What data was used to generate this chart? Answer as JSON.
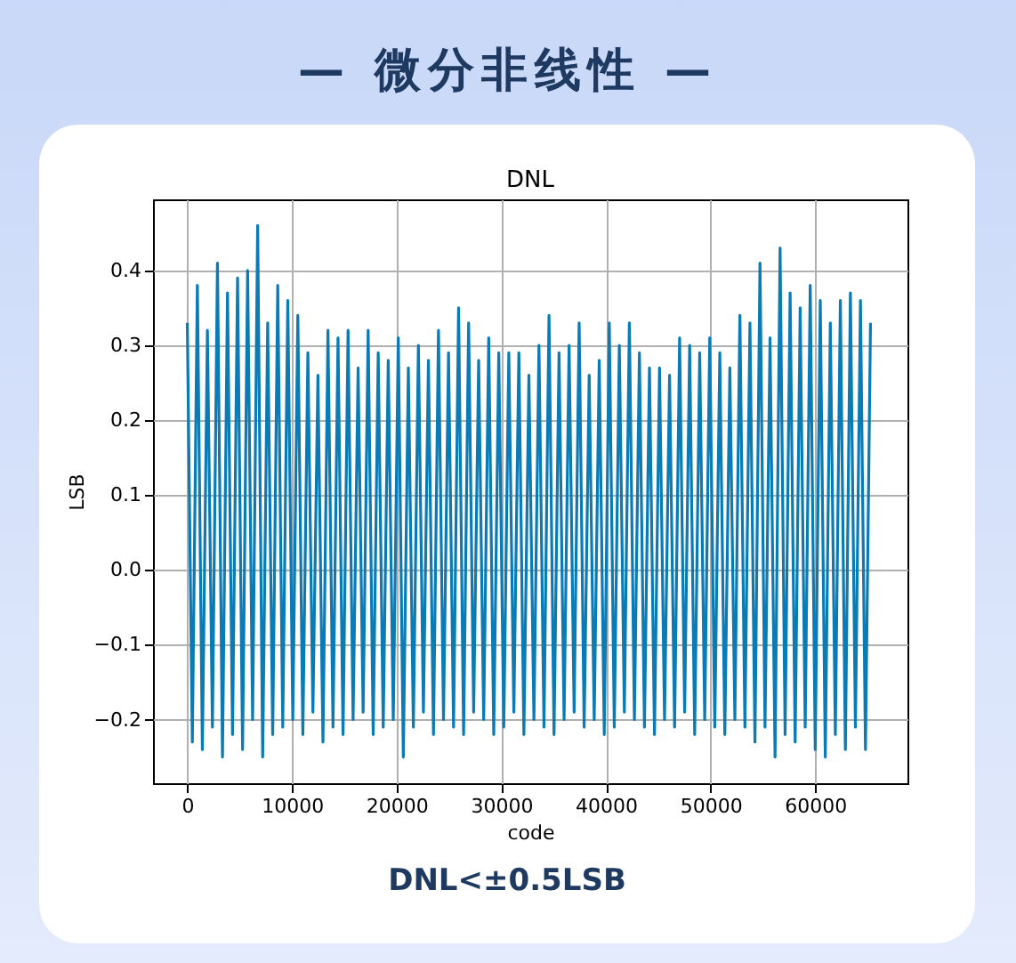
{
  "chart_data": {
    "type": "line",
    "title": "— 微分非线性 —",
    "subtitle": "DNL",
    "xlabel": "code",
    "ylabel": "LSB",
    "annotations": [
      "DNL<±0.5LSB"
    ],
    "x": [
      0,
      480,
      960,
      1440,
      1920,
      2400,
      2880,
      3360,
      3840,
      4320,
      4800,
      5280,
      5760,
      6240,
      6720,
      7200,
      7680,
      8160,
      8640,
      9120,
      9600,
      10080,
      10560,
      11040,
      11520,
      12000,
      12480,
      12960,
      13440,
      13920,
      14400,
      14880,
      15360,
      15840,
      16320,
      16800,
      17280,
      17760,
      18240,
      18720,
      19200,
      19680,
      20160,
      20640,
      21120,
      21600,
      22080,
      22560,
      23040,
      23520,
      24000,
      24480,
      24960,
      25440,
      25920,
      26400,
      26880,
      27360,
      27840,
      28320,
      28800,
      29280,
      29760,
      30240,
      30720,
      31200,
      31680,
      32160,
      32640,
      33120,
      33600,
      34080,
      34560,
      35040,
      35520,
      36000,
      36480,
      36960,
      37440,
      37920,
      38400,
      38880,
      39360,
      39840,
      40320,
      40800,
      41280,
      41760,
      42240,
      42720,
      43200,
      43680,
      44160,
      44640,
      45120,
      45600,
      46080,
      46560,
      47040,
      47520,
      48000,
      48480,
      48960,
      49440,
      49920,
      50400,
      50880,
      51360,
      51840,
      52320,
      52800,
      53280,
      53760,
      54240,
      54720,
      55200,
      55680,
      56160,
      56640,
      57120,
      57600,
      58080,
      58560,
      59040,
      59520,
      60000,
      60480,
      60960,
      61440,
      61920,
      62400,
      62880,
      63360,
      63840,
      64320,
      64800,
      65280
    ],
    "series": [
      {
        "color": "#0a7bb5",
        "values": [
          0.33,
          -0.23,
          0.38,
          -0.24,
          0.32,
          -0.21,
          0.41,
          -0.25,
          0.37,
          -0.22,
          0.39,
          -0.24,
          0.4,
          -0.2,
          0.46,
          -0.25,
          0.33,
          -0.22,
          0.38,
          -0.21,
          0.36,
          -0.2,
          0.34,
          -0.22,
          0.29,
          -0.19,
          0.26,
          -0.23,
          0.32,
          -0.21,
          0.31,
          -0.22,
          0.32,
          -0.2,
          0.27,
          -0.19,
          0.32,
          -0.22,
          0.29,
          -0.21,
          0.28,
          -0.2,
          0.31,
          -0.25,
          0.27,
          -0.21,
          0.3,
          -0.19,
          0.28,
          -0.22,
          0.32,
          -0.2,
          0.29,
          -0.21,
          0.35,
          -0.22,
          0.33,
          -0.19,
          0.28,
          -0.2,
          0.31,
          -0.22,
          0.29,
          -0.21,
          0.29,
          -0.19,
          0.29,
          -0.22,
          0.26,
          -0.2,
          0.3,
          -0.21,
          0.34,
          -0.22,
          0.29,
          -0.2,
          0.3,
          -0.19,
          0.33,
          -0.21,
          0.26,
          -0.2,
          0.28,
          -0.22,
          0.33,
          -0.21,
          0.3,
          -0.19,
          0.33,
          -0.2,
          0.29,
          -0.21,
          0.27,
          -0.22,
          0.27,
          -0.2,
          0.26,
          -0.21,
          0.31,
          -0.19,
          0.3,
          -0.22,
          0.29,
          -0.2,
          0.31,
          -0.21,
          0.29,
          -0.22,
          0.27,
          -0.2,
          0.34,
          -0.21,
          0.33,
          -0.23,
          0.41,
          -0.21,
          0.31,
          -0.25,
          0.43,
          -0.22,
          0.37,
          -0.23,
          0.35,
          -0.21,
          0.38,
          -0.24,
          0.36,
          -0.25,
          0.33,
          -0.22,
          0.36,
          -0.24,
          0.37,
          -0.21,
          0.36,
          -0.24,
          0.33
        ]
      }
    ],
    "xlim": [
      -3277,
      68812
    ],
    "ylim": [
      -0.285,
      0.495
    ],
    "xticks": [
      0,
      10000,
      20000,
      30000,
      40000,
      50000,
      60000
    ],
    "yticks": [
      {
        "value": -0.2,
        "label": "−0.2"
      },
      {
        "value": -0.1,
        "label": "−0.1"
      },
      {
        "value": 0,
        "label": "0.0"
      },
      {
        "value": 0.1,
        "label": "0.1"
      },
      {
        "value": 0.2,
        "label": "0.2"
      },
      {
        "value": 0.3,
        "label": "0.3"
      },
      {
        "value": 0.4,
        "label": "0.4"
      }
    ],
    "grid": true,
    "line_style": "solid"
  }
}
